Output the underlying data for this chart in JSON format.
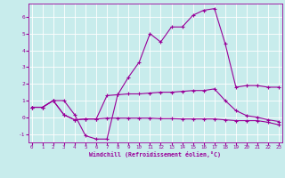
{
  "xlabel": "Windchill (Refroidissement éolien,°C)",
  "bg_color": "#c8ecec",
  "grid_color": "#ffffff",
  "line_color": "#990099",
  "curve1_x": [
    0,
    1,
    2,
    3,
    4,
    5,
    6,
    7,
    8,
    9,
    10,
    11,
    12,
    13,
    14,
    15,
    16,
    17,
    18,
    19,
    20,
    21,
    22,
    23
  ],
  "curve1_y": [
    0.6,
    0.6,
    1.0,
    1.0,
    0.15,
    -1.1,
    -1.3,
    -1.3,
    1.35,
    2.4,
    3.3,
    5.0,
    4.5,
    5.4,
    5.4,
    6.1,
    6.4,
    6.5,
    4.4,
    1.8,
    1.9,
    1.9,
    1.8,
    1.8
  ],
  "curve2_x": [
    0,
    1,
    2,
    3,
    4,
    5,
    6,
    7,
    8,
    9,
    10,
    11,
    12,
    13,
    14,
    15,
    16,
    17,
    18,
    19,
    20,
    21,
    22,
    23
  ],
  "curve2_y": [
    0.6,
    0.6,
    1.0,
    0.15,
    -0.15,
    -0.1,
    -0.1,
    1.3,
    1.35,
    1.4,
    1.4,
    1.45,
    1.5,
    1.5,
    1.55,
    1.6,
    1.6,
    1.7,
    1.0,
    0.4,
    0.1,
    0.0,
    -0.15,
    -0.25
  ],
  "curve3_x": [
    0,
    1,
    2,
    3,
    4,
    5,
    6,
    7,
    8,
    9,
    10,
    11,
    12,
    13,
    14,
    15,
    16,
    17,
    18,
    19,
    20,
    21,
    22,
    23
  ],
  "curve3_y": [
    0.6,
    0.6,
    1.0,
    0.15,
    -0.15,
    -0.1,
    -0.1,
    -0.05,
    -0.05,
    -0.05,
    -0.05,
    -0.05,
    -0.08,
    -0.08,
    -0.1,
    -0.1,
    -0.1,
    -0.1,
    -0.15,
    -0.2,
    -0.2,
    -0.2,
    -0.3,
    -0.45
  ],
  "ylim": [
    -1.5,
    6.8
  ],
  "xlim": [
    -0.3,
    23.3
  ],
  "yticks": [
    -1,
    0,
    1,
    2,
    3,
    4,
    5,
    6
  ],
  "xticks": [
    0,
    1,
    2,
    3,
    4,
    5,
    6,
    7,
    8,
    9,
    10,
    11,
    12,
    13,
    14,
    15,
    16,
    17,
    18,
    19,
    20,
    21,
    22,
    23
  ]
}
